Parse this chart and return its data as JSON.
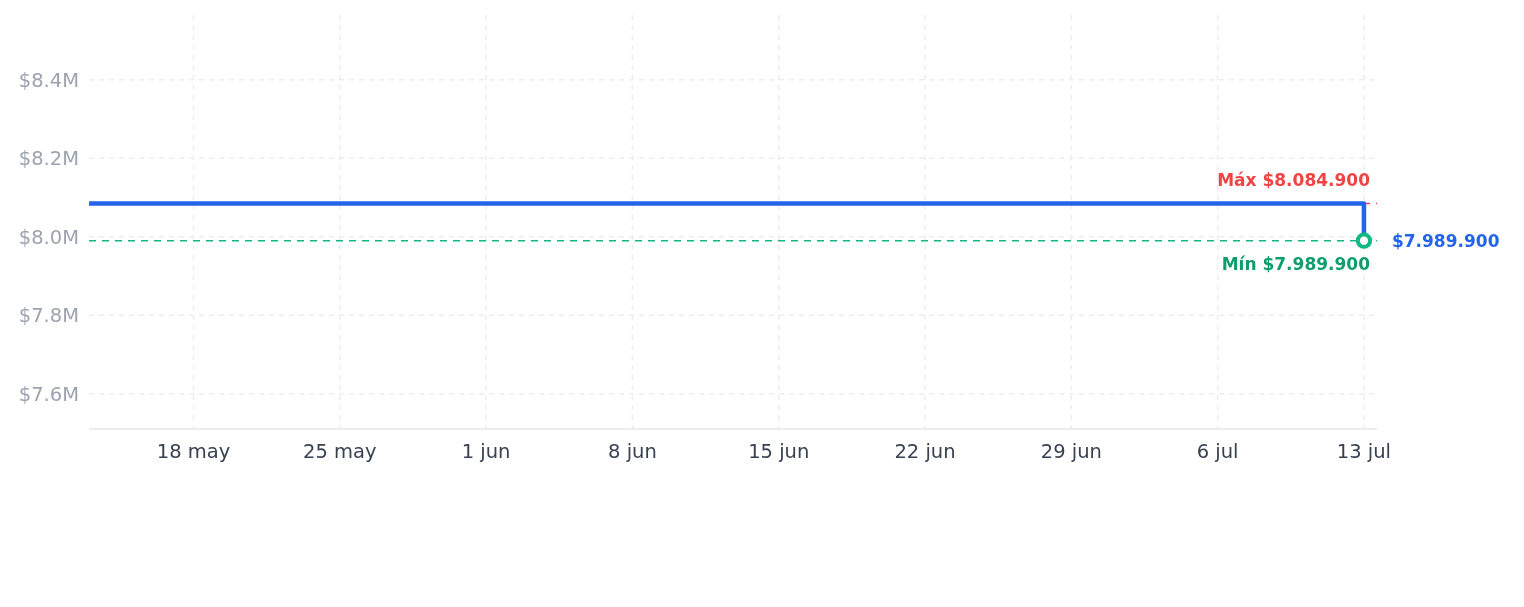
{
  "chart_data": {
    "type": "step",
    "x": [
      "--05-13",
      "--07-13"
    ],
    "series": [
      {
        "color": "#2563eb",
        "values": [
          8084900,
          7989900
        ],
        "value_labels": [
          null,
          "$7.989.900"
        ]
      },
      {
        "type": "scatter",
        "x": [
          "--07-13"
        ],
        "values": [
          7989900
        ],
        "color": "#10b981",
        "marker": "circle"
      }
    ],
    "xlim": [
      "--05-13",
      "--07-13T15:00"
    ],
    "xticks": [
      {
        "value": "--05-18",
        "label": "18 may"
      },
      {
        "value": "--05-25",
        "label": "25 may"
      },
      {
        "value": "--06-01",
        "label": "1 jun"
      },
      {
        "value": "--06-08",
        "label": "8 jun"
      },
      {
        "value": "--06-15",
        "label": "15 jun"
      },
      {
        "value": "--06-22",
        "label": "22 jun"
      },
      {
        "value": "--06-29",
        "label": "29 jun"
      },
      {
        "value": "--07-06",
        "label": "6 jul"
      },
      {
        "value": "--07-13",
        "label": "13 jul"
      }
    ],
    "ylim": [
      7510000,
      8565000
    ],
    "yticks": [
      {
        "value": 7600000,
        "label": "$7.6M"
      },
      {
        "value": 7800000,
        "label": "$7.8M"
      },
      {
        "value": 8000000,
        "label": "$8.0M"
      },
      {
        "value": 8200000,
        "label": "$8.2M"
      },
      {
        "value": 8400000,
        "label": "$8.4M"
      }
    ],
    "ref_lines": [
      {
        "axis": "y",
        "value": 8084900,
        "label": "Máx $8.084.900",
        "color": "#ef4444",
        "line_style": "dashed"
      },
      {
        "axis": "y",
        "value": 7989900,
        "label": "Mín $7.989.900",
        "color": "#10b981",
        "line_style": "dashed"
      }
    ],
    "grid": true
  }
}
